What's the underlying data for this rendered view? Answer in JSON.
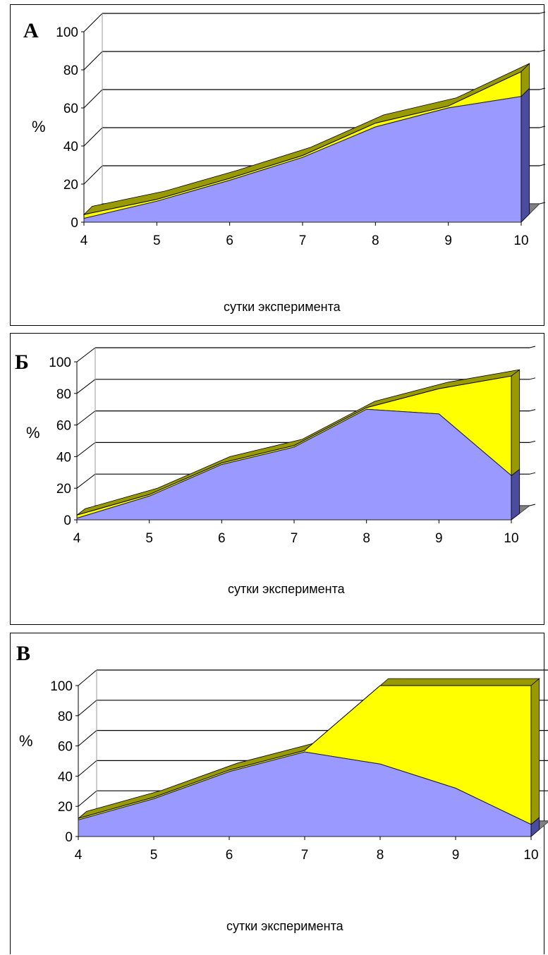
{
  "colors": {
    "blue_area": "#9999ff",
    "blue_side": "#4b4ba0",
    "yellow_area": "#ffff00",
    "yellow_side": "#999900",
    "floor": "#808080",
    "grid": "#000000"
  },
  "chart_data": [
    {
      "type": "area",
      "panel_label": "А",
      "ylabel": "%",
      "xlabel": "сутки эксперимента",
      "x": [
        4,
        5,
        6,
        7,
        8,
        9,
        10
      ],
      "ylim": [
        0,
        100
      ],
      "yticks": [
        0,
        20,
        40,
        60,
        80,
        100
      ],
      "grid": true,
      "three_d": true,
      "series": [
        {
          "values": [
            2,
            11,
            22,
            34,
            50,
            60,
            66
          ]
        },
        {
          "values": [
            2,
            1,
            1,
            1,
            2,
            1,
            13
          ]
        }
      ]
    },
    {
      "type": "area",
      "panel_label": "Б",
      "ylabel": "%",
      "xlabel": "сутки эксперимента",
      "x": [
        4,
        5,
        6,
        7,
        8,
        9,
        10
      ],
      "ylim": [
        0,
        100
      ],
      "yticks": [
        0,
        20,
        40,
        60,
        80,
        100
      ],
      "grid": true,
      "three_d": true,
      "series": [
        {
          "values": [
            1,
            15,
            35,
            46,
            70,
            67,
            28
          ]
        },
        {
          "values": [
            2,
            1,
            1,
            1,
            1,
            16,
            63
          ]
        }
      ]
    },
    {
      "type": "area",
      "panel_label": "В",
      "ylabel": "%",
      "xlabel": "сутки эксперимента",
      "x": [
        4,
        5,
        6,
        7,
        8,
        9,
        10
      ],
      "ylim": [
        0,
        100
      ],
      "yticks": [
        0,
        20,
        40,
        60,
        80,
        100
      ],
      "grid": true,
      "three_d": true,
      "series": [
        {
          "values": [
            11,
            25,
            43,
            56,
            48,
            32,
            8
          ]
        },
        {
          "values": [
            1,
            1,
            1,
            1,
            52,
            68,
            92
          ]
        }
      ]
    }
  ]
}
